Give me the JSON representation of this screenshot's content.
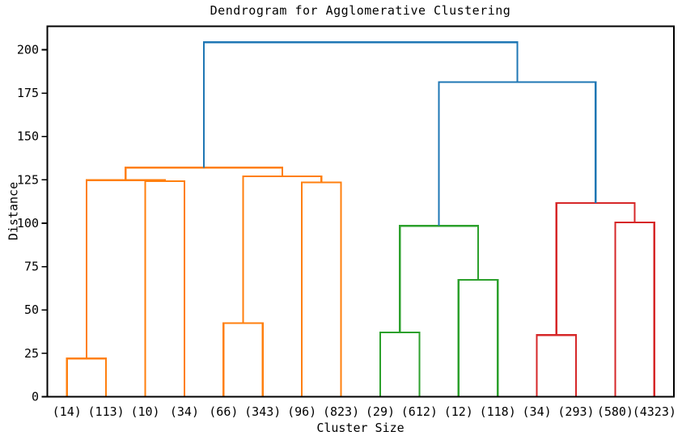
{
  "chart_data": {
    "type": "dendrogram",
    "title": "Dendrogram for Agglomerative Clustering",
    "xlabel": "Cluster Size",
    "ylabel": "Distance",
    "yticks": [
      0,
      25,
      50,
      75,
      100,
      125,
      150,
      175,
      200
    ],
    "ylim": [
      0,
      213.5
    ],
    "xlim": [
      0,
      160
    ],
    "grid": false,
    "legend": "none",
    "leaf_labels": [
      "(14)",
      "(113)",
      "(10)",
      "(34)",
      "(66)",
      "(343)",
      "(96)",
      "(823)",
      "(29)",
      "(612)",
      "(12)",
      "(118)",
      "(34)",
      "(293)",
      "(580)",
      "(4323)"
    ],
    "leaf_positions": [
      5,
      15,
      25,
      35,
      45,
      55,
      65,
      75,
      85,
      95,
      105,
      115,
      125,
      135,
      145,
      155
    ],
    "links": [
      {
        "id": "N16",
        "children": [
          "L0",
          "L1"
        ],
        "height": 22.0,
        "color": "#ff7f0e"
      },
      {
        "id": "N17",
        "children": [
          "L2",
          "L3"
        ],
        "height": 124.2,
        "color": "#ff7f0e"
      },
      {
        "id": "N18",
        "children": [
          "N16",
          "N17"
        ],
        "height": 124.8,
        "color": "#ff7f0e"
      },
      {
        "id": "N19",
        "children": [
          "L4",
          "L5"
        ],
        "height": 42.4,
        "color": "#ff7f0e"
      },
      {
        "id": "N20",
        "children": [
          "L6",
          "L7"
        ],
        "height": 123.5,
        "color": "#ff7f0e"
      },
      {
        "id": "N21",
        "children": [
          "N19",
          "N20"
        ],
        "height": 127.0,
        "color": "#ff7f0e"
      },
      {
        "id": "N22",
        "children": [
          "N18",
          "N21"
        ],
        "height": 132.0,
        "color": "#ff7f0e"
      },
      {
        "id": "N23",
        "children": [
          "L8",
          "L9"
        ],
        "height": 37.0,
        "color": "#2ca02c"
      },
      {
        "id": "N24",
        "children": [
          "L10",
          "L11"
        ],
        "height": 67.3,
        "color": "#2ca02c"
      },
      {
        "id": "N25",
        "children": [
          "N23",
          "N24"
        ],
        "height": 98.5,
        "color": "#2ca02c"
      },
      {
        "id": "N26",
        "children": [
          "L12",
          "L13"
        ],
        "height": 35.5,
        "color": "#d62728"
      },
      {
        "id": "N27",
        "children": [
          "L14",
          "L15"
        ],
        "height": 100.5,
        "color": "#d62728"
      },
      {
        "id": "N28",
        "children": [
          "N26",
          "N27"
        ],
        "height": 111.7,
        "color": "#d62728"
      },
      {
        "id": "N29",
        "children": [
          "N25",
          "N28"
        ],
        "height": 181.3,
        "color": "#1f77b4"
      },
      {
        "id": "N30",
        "children": [
          "N22",
          "N29"
        ],
        "height": 204.3,
        "color": "#1f77b4"
      }
    ],
    "colors": {
      "above_threshold_link": "#1f77b4",
      "cluster_1": "#ff7f0e",
      "cluster_2": "#2ca02c",
      "cluster_3": "#d62728",
      "axes": "#000000",
      "background": "#ffffff"
    }
  }
}
